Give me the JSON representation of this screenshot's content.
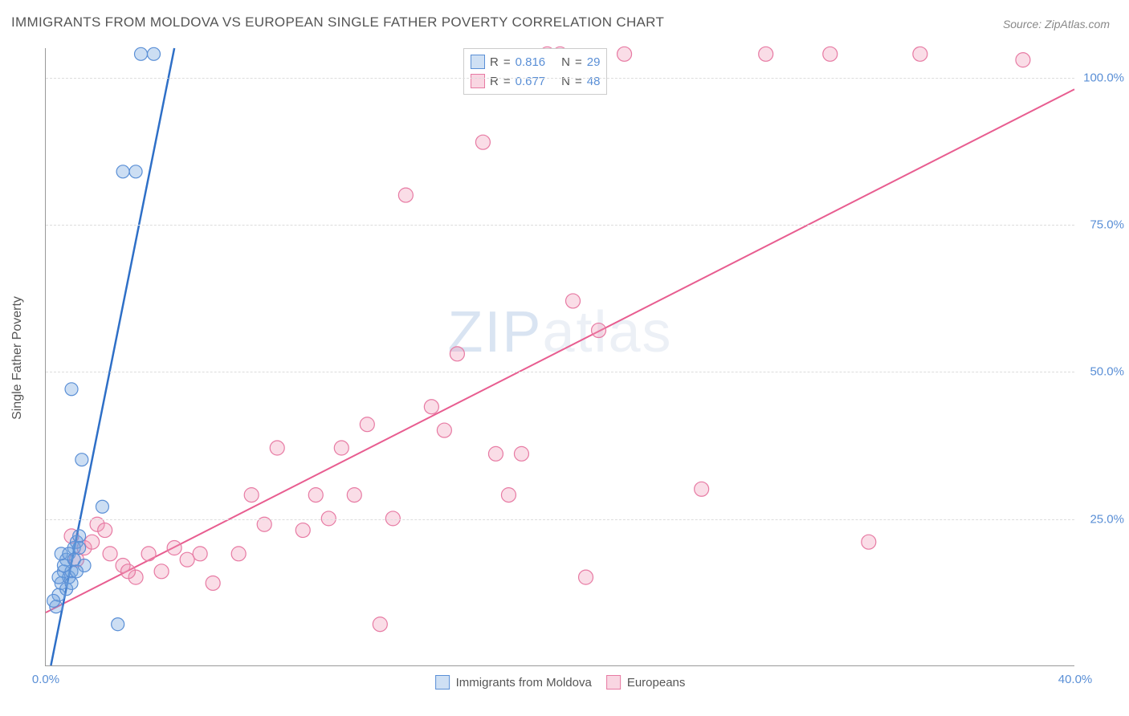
{
  "title": "IMMIGRANTS FROM MOLDOVA VS EUROPEAN SINGLE FATHER POVERTY CORRELATION CHART",
  "source": "Source: ZipAtlas.com",
  "watermark": "ZIPatlas",
  "y_axis_label": "Single Father Poverty",
  "chart": {
    "type": "scatter",
    "xlim": [
      0,
      40
    ],
    "ylim": [
      0,
      105
    ],
    "x_ticks": [
      0,
      40
    ],
    "x_tick_labels": [
      "0.0%",
      "40.0%"
    ],
    "y_ticks": [
      25,
      50,
      75,
      100
    ],
    "y_tick_labels": [
      "25.0%",
      "50.0%",
      "75.0%",
      "100.0%"
    ],
    "grid_color": "#dddddd",
    "background_color": "#ffffff",
    "series": [
      {
        "key": "moldova",
        "label": "Immigrants from Moldova",
        "R": "0.816",
        "N": "29",
        "point_fill": "rgba(110,160,220,0.35)",
        "point_stroke": "#5a8fd6",
        "line_color": "#2e6fc7",
        "line_width": 2.5,
        "marker_radius": 8,
        "swatch_fill": "#cfe0f4",
        "swatch_border": "#5a8fd6",
        "trend": {
          "x1": 0.2,
          "y1": 0,
          "x2": 5.0,
          "y2": 105
        },
        "points": [
          {
            "x": 0.5,
            "y": 12
          },
          {
            "x": 0.6,
            "y": 14
          },
          {
            "x": 0.7,
            "y": 16
          },
          {
            "x": 0.8,
            "y": 18
          },
          {
            "x": 0.9,
            "y": 15
          },
          {
            "x": 1.0,
            "y": 16
          },
          {
            "x": 1.1,
            "y": 20
          },
          {
            "x": 1.2,
            "y": 21
          },
          {
            "x": 1.3,
            "y": 22
          },
          {
            "x": 1.5,
            "y": 17
          },
          {
            "x": 0.4,
            "y": 10
          },
          {
            "x": 0.3,
            "y": 11
          },
          {
            "x": 1.0,
            "y": 47
          },
          {
            "x": 2.2,
            "y": 27
          },
          {
            "x": 1.4,
            "y": 35
          },
          {
            "x": 2.8,
            "y": 7
          },
          {
            "x": 0.6,
            "y": 19
          },
          {
            "x": 0.8,
            "y": 13
          },
          {
            "x": 1.0,
            "y": 14
          },
          {
            "x": 1.2,
            "y": 16
          },
          {
            "x": 3.7,
            "y": 104
          },
          {
            "x": 4.2,
            "y": 104
          },
          {
            "x": 3.0,
            "y": 84
          },
          {
            "x": 3.5,
            "y": 84
          },
          {
            "x": 0.5,
            "y": 15
          },
          {
            "x": 0.7,
            "y": 17
          },
          {
            "x": 0.9,
            "y": 19
          },
          {
            "x": 1.1,
            "y": 18
          },
          {
            "x": 1.3,
            "y": 20
          }
        ]
      },
      {
        "key": "europeans",
        "label": "Europeans",
        "R": "0.677",
        "N": "48",
        "point_fill": "rgba(240,150,180,0.32)",
        "point_stroke": "#e77aa3",
        "line_color": "#e85d90",
        "line_width": 2,
        "marker_radius": 9,
        "swatch_fill": "#f9d6e2",
        "swatch_border": "#e77aa3",
        "trend": {
          "x1": 0,
          "y1": 9,
          "x2": 40,
          "y2": 98
        },
        "points": [
          {
            "x": 1.0,
            "y": 22
          },
          {
            "x": 1.5,
            "y": 20
          },
          {
            "x": 2.0,
            "y": 24
          },
          {
            "x": 2.5,
            "y": 19
          },
          {
            "x": 3.0,
            "y": 17
          },
          {
            "x": 3.5,
            "y": 15
          },
          {
            "x": 4.0,
            "y": 19
          },
          {
            "x": 4.5,
            "y": 16
          },
          {
            "x": 5.0,
            "y": 20
          },
          {
            "x": 5.5,
            "y": 18
          },
          {
            "x": 6.0,
            "y": 19
          },
          {
            "x": 6.5,
            "y": 14
          },
          {
            "x": 7.5,
            "y": 19
          },
          {
            "x": 8.0,
            "y": 29
          },
          {
            "x": 8.5,
            "y": 24
          },
          {
            "x": 9.0,
            "y": 37
          },
          {
            "x": 10.0,
            "y": 23
          },
          {
            "x": 10.5,
            "y": 29
          },
          {
            "x": 11.0,
            "y": 25
          },
          {
            "x": 11.5,
            "y": 37
          },
          {
            "x": 12.0,
            "y": 29
          },
          {
            "x": 12.5,
            "y": 41
          },
          {
            "x": 13.0,
            "y": 7
          },
          {
            "x": 13.5,
            "y": 25
          },
          {
            "x": 14.0,
            "y": 80
          },
          {
            "x": 15.0,
            "y": 44
          },
          {
            "x": 15.5,
            "y": 40
          },
          {
            "x": 16.0,
            "y": 53
          },
          {
            "x": 17.0,
            "y": 89
          },
          {
            "x": 17.5,
            "y": 36
          },
          {
            "x": 18.0,
            "y": 29
          },
          {
            "x": 18.5,
            "y": 36
          },
          {
            "x": 19.5,
            "y": 104
          },
          {
            "x": 20.0,
            "y": 104
          },
          {
            "x": 20.5,
            "y": 62
          },
          {
            "x": 21.0,
            "y": 15
          },
          {
            "x": 21.5,
            "y": 57
          },
          {
            "x": 22.5,
            "y": 104
          },
          {
            "x": 25.5,
            "y": 30
          },
          {
            "x": 28.0,
            "y": 104
          },
          {
            "x": 30.5,
            "y": 104
          },
          {
            "x": 32.0,
            "y": 21
          },
          {
            "x": 34.0,
            "y": 104
          },
          {
            "x": 38.0,
            "y": 103
          },
          {
            "x": 1.2,
            "y": 18
          },
          {
            "x": 1.8,
            "y": 21
          },
          {
            "x": 2.3,
            "y": 23
          },
          {
            "x": 3.2,
            "y": 16
          }
        ]
      }
    ]
  },
  "legend_top_labels": {
    "R": "R",
    "N": "N",
    "eq": "="
  },
  "legend_bottom": [
    "Immigrants from Moldova",
    "Europeans"
  ]
}
